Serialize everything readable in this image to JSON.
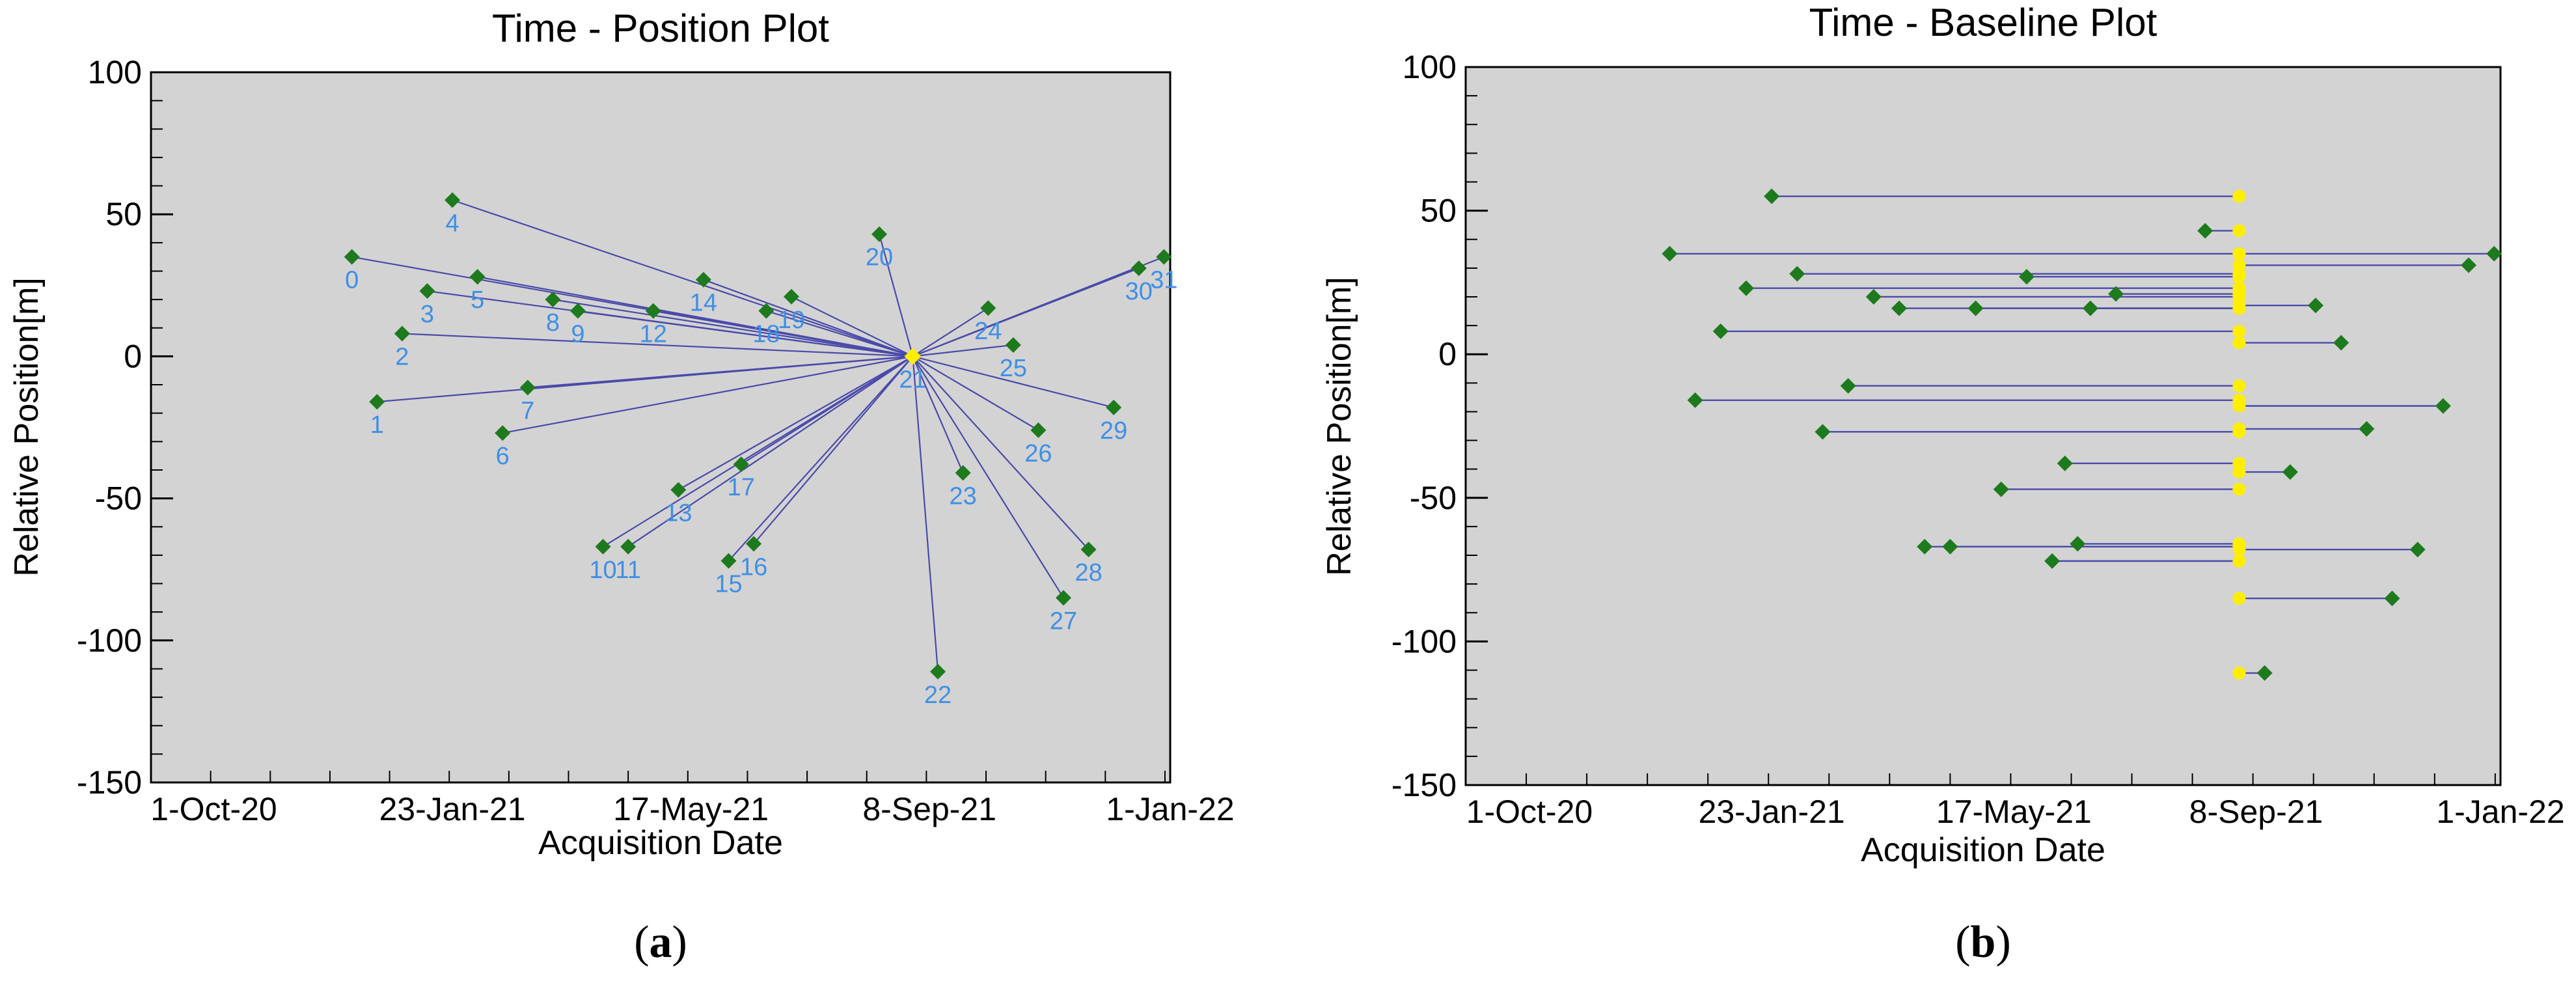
{
  "chart_data": [
    {
      "id": "a",
      "type": "scatter",
      "title": "Time - Position Plot",
      "xlabel": "Acquisition Date",
      "ylabel": "Relative Position[m]",
      "xlim": [
        "2020-09-01",
        "2022-01-01"
      ],
      "ylim": [
        -150,
        100
      ],
      "yticks": [
        -150,
        -100,
        -50,
        0,
        50,
        100
      ],
      "xticks": [
        {
          "date": "2020-10-01",
          "label": "1-Oct-20"
        },
        {
          "date": "2021-01-23",
          "label": "23-Jan-21"
        },
        {
          "date": "2021-05-17",
          "label": "17-May-21"
        },
        {
          "date": "2021-09-08",
          "label": "8-Sep-21"
        },
        {
          "date": "2022-01-01",
          "label": "1-Jan-22"
        }
      ],
      "grid": false,
      "master": {
        "label": "21",
        "date": "2021-08-31",
        "y": 0
      },
      "points": [
        {
          "label": "0",
          "date": "2020-12-06",
          "y": 35
        },
        {
          "label": "1",
          "date": "2020-12-18",
          "y": -16
        },
        {
          "label": "2",
          "date": "2020-12-30",
          "y": 8
        },
        {
          "label": "3",
          "date": "2021-01-11",
          "y": 23
        },
        {
          "label": "4",
          "date": "2021-01-23",
          "y": 55
        },
        {
          "label": "5",
          "date": "2021-02-04",
          "y": 28
        },
        {
          "label": "6",
          "date": "2021-02-16",
          "y": -27
        },
        {
          "label": "7",
          "date": "2021-02-28",
          "y": -11
        },
        {
          "label": "8",
          "date": "2021-03-12",
          "y": 20
        },
        {
          "label": "9",
          "date": "2021-03-24",
          "y": 16
        },
        {
          "label": "10",
          "date": "2021-04-05",
          "y": -67
        },
        {
          "label": "11",
          "date": "2021-04-17",
          "y": -67
        },
        {
          "label": "12",
          "date": "2021-04-29",
          "y": 16
        },
        {
          "label": "13",
          "date": "2021-05-11",
          "y": -47
        },
        {
          "label": "14",
          "date": "2021-05-23",
          "y": 27
        },
        {
          "label": "15",
          "date": "2021-06-04",
          "y": -72
        },
        {
          "label": "16",
          "date": "2021-06-16",
          "y": -66
        },
        {
          "label": "17",
          "date": "2021-06-10",
          "y": -38
        },
        {
          "label": "18",
          "date": "2021-06-22",
          "y": 16
        },
        {
          "label": "19",
          "date": "2021-07-04",
          "y": 21
        },
        {
          "label": "20",
          "date": "2021-08-15",
          "y": 43
        },
        {
          "label": "22",
          "date": "2021-09-12",
          "y": -111
        },
        {
          "label": "23",
          "date": "2021-09-24",
          "y": -41
        },
        {
          "label": "24",
          "date": "2021-10-06",
          "y": 17
        },
        {
          "label": "25",
          "date": "2021-10-18",
          "y": 4
        },
        {
          "label": "26",
          "date": "2021-10-30",
          "y": -26
        },
        {
          "label": "27",
          "date": "2021-11-11",
          "y": -85
        },
        {
          "label": "28",
          "date": "2021-11-23",
          "y": -68
        },
        {
          "label": "29",
          "date": "2021-12-05",
          "y": -18
        },
        {
          "label": "30",
          "date": "2021-12-17",
          "y": 31
        },
        {
          "label": "31",
          "date": "2021-12-29",
          "y": 35
        }
      ],
      "colors": {
        "point": "#1d7a1d",
        "master": "#ffee00",
        "line": "#4a4aaa",
        "label": "#3f8fe6",
        "background": "#d3d3d3"
      }
    },
    {
      "id": "b",
      "type": "scatter",
      "title": "Time - Baseline Plot",
      "xlabel": "Acquisition Date",
      "ylabel": "Relative Position[m]",
      "xlim": [
        "2020-09-01",
        "2022-01-01"
      ],
      "ylim": [
        -150,
        100
      ],
      "yticks": [
        -150,
        -100,
        -50,
        0,
        50,
        100
      ],
      "xticks": [
        {
          "date": "2020-10-01",
          "label": "1-Oct-20"
        },
        {
          "date": "2021-01-23",
          "label": "23-Jan-21"
        },
        {
          "date": "2021-05-17",
          "label": "17-May-21"
        },
        {
          "date": "2021-09-08",
          "label": "8-Sep-21"
        },
        {
          "date": "2022-01-01",
          "label": "1-Jan-22"
        }
      ],
      "grid": false,
      "master_date": "2021-08-31",
      "baselines": [
        {
          "date": "2020-12-06",
          "y": 35
        },
        {
          "date": "2020-12-18",
          "y": -16
        },
        {
          "date": "2020-12-30",
          "y": 8
        },
        {
          "date": "2021-01-11",
          "y": 23
        },
        {
          "date": "2021-01-23",
          "y": 55
        },
        {
          "date": "2021-02-04",
          "y": 28
        },
        {
          "date": "2021-02-16",
          "y": -27
        },
        {
          "date": "2021-02-28",
          "y": -11
        },
        {
          "date": "2021-03-12",
          "y": 20
        },
        {
          "date": "2021-03-24",
          "y": 16
        },
        {
          "date": "2021-04-05",
          "y": -67
        },
        {
          "date": "2021-04-17",
          "y": -67
        },
        {
          "date": "2021-04-29",
          "y": 16
        },
        {
          "date": "2021-05-11",
          "y": -47
        },
        {
          "date": "2021-05-23",
          "y": 27
        },
        {
          "date": "2021-06-04",
          "y": -72
        },
        {
          "date": "2021-06-16",
          "y": -66
        },
        {
          "date": "2021-06-10",
          "y": -38
        },
        {
          "date": "2021-06-22",
          "y": 16
        },
        {
          "date": "2021-07-04",
          "y": 21
        },
        {
          "date": "2021-08-15",
          "y": 43
        },
        {
          "date": "2021-09-12",
          "y": -111
        },
        {
          "date": "2021-09-24",
          "y": -41
        },
        {
          "date": "2021-10-06",
          "y": 17
        },
        {
          "date": "2021-10-18",
          "y": 4
        },
        {
          "date": "2021-10-30",
          "y": -26
        },
        {
          "date": "2021-11-11",
          "y": -85
        },
        {
          "date": "2021-11-23",
          "y": -68
        },
        {
          "date": "2021-12-05",
          "y": -18
        },
        {
          "date": "2021-12-17",
          "y": 31
        },
        {
          "date": "2021-12-29",
          "y": 35
        }
      ],
      "colors": {
        "point": "#1d7a1d",
        "master": "#ffee00",
        "line": "#4a4aaa",
        "background": "#d3d3d3"
      }
    }
  ],
  "captions": [
    {
      "open": "(",
      "letter": "a",
      "close": ")"
    },
    {
      "open": "(",
      "letter": "b",
      "close": ")"
    }
  ]
}
